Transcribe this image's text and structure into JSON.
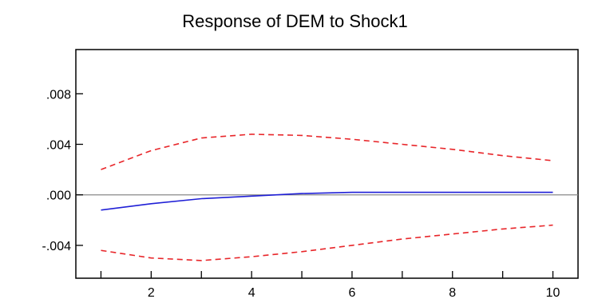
{
  "chart_data": {
    "type": "line",
    "title": "Response of DEM to Shock1",
    "xlabel": "",
    "ylabel": "",
    "x": [
      1,
      2,
      3,
      4,
      5,
      6,
      7,
      8,
      9,
      10
    ],
    "xlim": [
      0.5,
      10.5
    ],
    "ylim": [
      -0.0066,
      0.0115
    ],
    "x_ticks": [
      2,
      4,
      6,
      8,
      10
    ],
    "x_minor_ticks": [
      1,
      3,
      5,
      7,
      9
    ],
    "y_ticks": [
      {
        "value": 0.008,
        "label": ".008"
      },
      {
        "value": 0.004,
        "label": ".004"
      },
      {
        "value": 0.0,
        "label": ".000"
      },
      {
        "value": -0.004,
        "label": "-.004"
      }
    ],
    "reference_line": 0,
    "grid": false,
    "series": [
      {
        "role": "response",
        "color": "#1f1fd6",
        "style": "solid",
        "values": [
          -0.0012,
          -0.0007,
          -0.0003,
          -0.0001,
          0.0001,
          0.0002,
          0.0002,
          0.0002,
          0.0002,
          0.0002
        ]
      },
      {
        "role": "upper-band",
        "color": "#e8262a",
        "style": "dashed",
        "values": [
          0.002,
          0.0035,
          0.0045,
          0.0048,
          0.0047,
          0.0044,
          0.004,
          0.0036,
          0.0031,
          0.0027
        ]
      },
      {
        "role": "lower-band",
        "color": "#e8262a",
        "style": "dashed",
        "values": [
          -0.0044,
          -0.005,
          -0.0052,
          -0.0049,
          -0.0045,
          -0.004,
          -0.0035,
          -0.0031,
          -0.0027,
          -0.0024
        ]
      }
    ],
    "colors": {
      "axis": "#000000",
      "zero_line": "#8a8a8a"
    }
  }
}
